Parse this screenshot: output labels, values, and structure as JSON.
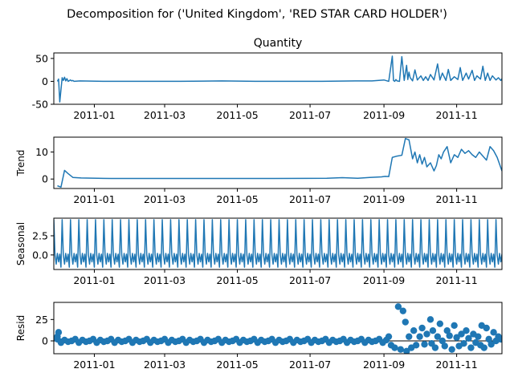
{
  "figure": {
    "suptitle": "Decomposition for ('United Kingdom', 'RED STAR CARD HOLDER')"
  },
  "chart_data": [
    {
      "type": "line",
      "title": "Quantity",
      "ylabel": "",
      "xlim": [
        "2011-11-28",
        "2011-12-09"
      ],
      "ylim": [
        -50,
        62
      ],
      "yticks": [
        50,
        0,
        -50
      ],
      "xticks": [
        "2011-01",
        "2011-03",
        "2011-05",
        "2011-07",
        "2011-09",
        "2011-11"
      ],
      "color": "#1f77b4",
      "series": [
        {
          "x": [
            "2010-12-01",
            "2010-12-02",
            "2010-12-03",
            "2010-12-05",
            "2010-12-06",
            "2010-12-07",
            "2010-12-08",
            "2010-12-09",
            "2010-12-10",
            "2010-12-12",
            "2010-12-13",
            "2010-12-14",
            "2010-12-15",
            "2010-12-20",
            "2011-01-10",
            "2011-02-14",
            "2011-03-14",
            "2011-04-18",
            "2011-05-16",
            "2011-06-13",
            "2011-07-11",
            "2011-08-08",
            "2011-08-22",
            "2011-09-01",
            "2011-09-05",
            "2011-09-08",
            "2011-09-09",
            "2011-09-10",
            "2011-09-11",
            "2011-09-12",
            "2011-09-14",
            "2011-09-16",
            "2011-09-18",
            "2011-09-20",
            "2011-09-21",
            "2011-09-22",
            "2011-09-23",
            "2011-09-25",
            "2011-09-27",
            "2011-09-29",
            "2011-10-02",
            "2011-10-04",
            "2011-10-06",
            "2011-10-08",
            "2011-10-10",
            "2011-10-13",
            "2011-10-16",
            "2011-10-18",
            "2011-10-20",
            "2011-10-23",
            "2011-10-25",
            "2011-10-27",
            "2011-10-30",
            "2011-11-02",
            "2011-11-04",
            "2011-11-06",
            "2011-11-09",
            "2011-11-11",
            "2011-11-14",
            "2011-11-16",
            "2011-11-18",
            "2011-11-21",
            "2011-11-23",
            "2011-11-25",
            "2011-11-27",
            "2011-11-29",
            "2011-12-01",
            "2011-12-04",
            "2011-12-06",
            "2011-12-08",
            "2011-12-09"
          ],
          "y": [
            0,
            5,
            -45,
            8,
            2,
            9,
            1,
            6,
            0,
            3,
            1,
            2,
            0,
            1,
            0,
            0,
            0,
            1,
            0,
            0,
            0,
            1,
            1,
            3,
            0,
            55,
            2,
            0,
            4,
            1,
            0,
            54,
            2,
            35,
            4,
            20,
            8,
            1,
            25,
            3,
            12,
            2,
            10,
            2,
            15,
            3,
            38,
            3,
            18,
            2,
            26,
            2,
            10,
            4,
            30,
            2,
            18,
            5,
            24,
            2,
            12,
            5,
            33,
            2,
            18,
            2,
            12,
            3,
            8,
            2,
            6
          ]
        }
      ]
    },
    {
      "type": "line",
      "title": "",
      "ylabel": "Trend",
      "xlim": [
        "2011-11-28",
        "2011-12-09"
      ],
      "ylim": [
        -3.5,
        15.5
      ],
      "yticks": [
        10,
        0
      ],
      "xticks": [
        "2011-01",
        "2011-03",
        "2011-05",
        "2011-07",
        "2011-09",
        "2011-11"
      ],
      "color": "#1f77b4",
      "series": [
        {
          "x": [
            "2010-12-01",
            "2010-12-04",
            "2010-12-07",
            "2010-12-10",
            "2010-12-14",
            "2010-12-21",
            "2011-01-15",
            "2011-03-01",
            "2011-04-15",
            "2011-06-01",
            "2011-07-15",
            "2011-07-28",
            "2011-08-10",
            "2011-08-20",
            "2011-08-30",
            "2011-09-02",
            "2011-09-05",
            "2011-09-08",
            "2011-09-12",
            "2011-09-16",
            "2011-09-19",
            "2011-09-22",
            "2011-09-25",
            "2011-09-27",
            "2011-09-29",
            "2011-10-01",
            "2011-10-03",
            "2011-10-05",
            "2011-10-07",
            "2011-10-10",
            "2011-10-13",
            "2011-10-15",
            "2011-10-17",
            "2011-10-19",
            "2011-10-21",
            "2011-10-24",
            "2011-10-27",
            "2011-10-30",
            "2011-11-02",
            "2011-11-05",
            "2011-11-08",
            "2011-11-11",
            "2011-11-14",
            "2011-11-17",
            "2011-11-20",
            "2011-11-23",
            "2011-11-26",
            "2011-11-29",
            "2011-12-02",
            "2011-12-05",
            "2011-12-09"
          ],
          "y": [
            -2.5,
            -3.0,
            3.2,
            2.0,
            0.6,
            0.4,
            0.2,
            0.2,
            0.2,
            0.2,
            0.3,
            0.5,
            0.3,
            0.6,
            0.8,
            1.0,
            0.9,
            8.0,
            8.5,
            8.8,
            15.0,
            14.5,
            7.5,
            10.0,
            6.0,
            9.0,
            5.5,
            8.0,
            4.5,
            6.0,
            3.0,
            5.0,
            9.0,
            7.5,
            10.0,
            12.0,
            6.0,
            9.0,
            8.0,
            11.0,
            9.5,
            10.5,
            9.0,
            8.0,
            10.0,
            8.5,
            7.0,
            12.0,
            10.5,
            8.0,
            3.0
          ]
        }
      ]
    },
    {
      "type": "line",
      "title": "",
      "ylabel": "Seasonal",
      "xlim": [
        "2011-11-28",
        "2011-12-09"
      ],
      "ylim": [
        -1.9,
        4.8
      ],
      "yticks": [
        2.5,
        0.0
      ],
      "xticks": [
        "2011-01",
        "2011-03",
        "2011-05",
        "2011-07",
        "2011-09",
        "2011-11"
      ],
      "color": "#1f77b4",
      "period_days": 7,
      "cycle_start": "2010-11-28",
      "pattern": [
        4.6,
        0.0,
        -1.2,
        0.2,
        -0.9,
        0.1,
        -1.6
      ]
    },
    {
      "type": "scatter",
      "title": "",
      "ylabel": "Resid",
      "xlim": [
        "2011-11-28",
        "2011-12-09"
      ],
      "ylim": [
        -15,
        45
      ],
      "yticks": [
        25,
        0
      ],
      "xticks": [
        "2011-01",
        "2011-03",
        "2011-05",
        "2011-07",
        "2011-09",
        "2011-11"
      ],
      "color": "#1f77b4",
      "zero_line": true,
      "regular_start": "2010-12-01",
      "regular_end": "2011-09-03",
      "regular_step_days": 3,
      "regular_pattern": [
        2,
        -2,
        1,
        -1,
        0
      ],
      "outliers": [
        {
          "x": "2010-12-01",
          "y": 5
        },
        {
          "x": "2010-12-02",
          "y": 10
        },
        {
          "x": "2010-12-04",
          "y": -1
        },
        {
          "x": "2011-09-05",
          "y": 5
        },
        {
          "x": "2011-09-07",
          "y": -5
        },
        {
          "x": "2011-09-10",
          "y": -8
        },
        {
          "x": "2011-09-13",
          "y": 40
        },
        {
          "x": "2011-09-15",
          "y": -10
        },
        {
          "x": "2011-09-17",
          "y": 35
        },
        {
          "x": "2011-09-19",
          "y": 22
        },
        {
          "x": "2011-09-20",
          "y": -12
        },
        {
          "x": "2011-09-22",
          "y": 5
        },
        {
          "x": "2011-09-24",
          "y": -8
        },
        {
          "x": "2011-09-26",
          "y": 12
        },
        {
          "x": "2011-09-28",
          "y": -5
        },
        {
          "x": "2011-10-01",
          "y": 5
        },
        {
          "x": "2011-10-03",
          "y": 15
        },
        {
          "x": "2011-10-05",
          "y": -4
        },
        {
          "x": "2011-10-07",
          "y": 8
        },
        {
          "x": "2011-10-10",
          "y": 25
        },
        {
          "x": "2011-10-11",
          "y": -3
        },
        {
          "x": "2011-10-12",
          "y": 12
        },
        {
          "x": "2011-10-14",
          "y": -8
        },
        {
          "x": "2011-10-16",
          "y": 5
        },
        {
          "x": "2011-10-18",
          "y": 20
        },
        {
          "x": "2011-10-20",
          "y": 0
        },
        {
          "x": "2011-10-22",
          "y": -6
        },
        {
          "x": "2011-10-24",
          "y": 12
        },
        {
          "x": "2011-10-26",
          "y": 6
        },
        {
          "x": "2011-10-28",
          "y": -10
        },
        {
          "x": "2011-10-30",
          "y": 18
        },
        {
          "x": "2011-11-01",
          "y": 4
        },
        {
          "x": "2011-11-03",
          "y": -6
        },
        {
          "x": "2011-11-05",
          "y": 8
        },
        {
          "x": "2011-11-07",
          "y": -3
        },
        {
          "x": "2011-11-09",
          "y": 12
        },
        {
          "x": "2011-11-11",
          "y": 3
        },
        {
          "x": "2011-11-13",
          "y": -8
        },
        {
          "x": "2011-11-15",
          "y": 8
        },
        {
          "x": "2011-11-17",
          "y": -2
        },
        {
          "x": "2011-11-19",
          "y": 5
        },
        {
          "x": "2011-11-21",
          "y": -5
        },
        {
          "x": "2011-11-22",
          "y": 18
        },
        {
          "x": "2011-11-24",
          "y": -8
        },
        {
          "x": "2011-11-26",
          "y": 15
        },
        {
          "x": "2011-11-28",
          "y": 2
        },
        {
          "x": "2011-11-30",
          "y": -4
        },
        {
          "x": "2011-12-02",
          "y": 10
        },
        {
          "x": "2011-12-04",
          "y": 0
        },
        {
          "x": "2011-12-06",
          "y": 5
        },
        {
          "x": "2011-12-08",
          "y": 2
        }
      ]
    }
  ]
}
